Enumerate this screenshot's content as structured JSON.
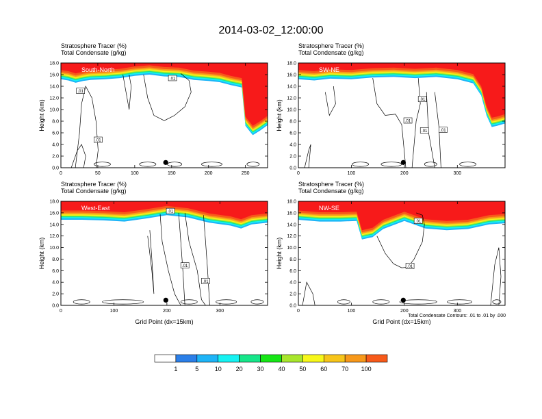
{
  "figure": {
    "title": "2014-03-02_12:00:00",
    "footnote": "Total Condensate Contours: .01 to .01 by .000"
  },
  "colors": {
    "scale": [
      "#ffffff",
      "#2b7fe8",
      "#1eb4f7",
      "#16f2f2",
      "#16e68a",
      "#16e616",
      "#a8e62c",
      "#f7f71a",
      "#f7c51a",
      "#f7981a",
      "#f75a1a",
      "#f71a1a"
    ],
    "contour": "#000000",
    "frame": "#000000"
  },
  "colorbar": {
    "labels": [
      "1",
      "5",
      "10",
      "20",
      "30",
      "40",
      "50",
      "60",
      "70",
      "100"
    ]
  },
  "chart_data": [
    {
      "type": "heatmap",
      "title": "Stratosphere Tracer   (%)",
      "subtitle": "Total Condensate   (g/kg)",
      "region_label": "South-North",
      "xlabel": "",
      "ylabel": "Height (km)",
      "xlim": [
        0,
        280
      ],
      "ylim": [
        0,
        18
      ],
      "xticks": [
        "0",
        "50",
        "100",
        "150",
        "200",
        "250"
      ],
      "yticks": [
        "0.0",
        "2.0",
        "4.0",
        "6.0",
        "8.0",
        "10.0",
        "12.0",
        "14.0",
        "16.0",
        "18.0"
      ],
      "contour_labels": [
        ".01",
        ".01",
        ".01"
      ],
      "marker_x": 142,
      "tracer_base_km": [
        [
          0,
          15.2
        ],
        [
          10,
          15.0
        ],
        [
          20,
          14.6
        ],
        [
          30,
          14.9
        ],
        [
          40,
          15.1
        ],
        [
          60,
          15.2
        ],
        [
          80,
          15.4
        ],
        [
          100,
          15.8
        ],
        [
          120,
          16.0
        ],
        [
          140,
          15.7
        ],
        [
          160,
          15.6
        ],
        [
          180,
          15.1
        ],
        [
          200,
          14.9
        ],
        [
          215,
          14.7
        ],
        [
          230,
          14.2
        ],
        [
          245,
          13.8
        ],
        [
          250,
          7.2
        ],
        [
          255,
          6.4
        ],
        [
          260,
          5.6
        ],
        [
          270,
          6.4
        ],
        [
          280,
          7.3
        ]
      ]
    },
    {
      "type": "heatmap",
      "title": "Stratosphere Tracer   (%)",
      "subtitle": "Total Condensate   (g/kg)",
      "region_label": "SW-NE",
      "xlabel": "",
      "ylabel": "Height (km)",
      "xlim": [
        0,
        390
      ],
      "ylim": [
        0,
        18
      ],
      "xticks": [
        "0",
        "100",
        "200",
        "300"
      ],
      "yticks": [
        "0.0",
        "2.0",
        "4.0",
        "6.0",
        "8.0",
        "10.0",
        "12.0",
        "14.0",
        "16.0",
        "18.0"
      ],
      "contour_labels": [
        ".01",
        ".01",
        ".01",
        ".01"
      ],
      "marker_x": 198,
      "tracer_base_km": [
        [
          0,
          15.2
        ],
        [
          30,
          15.0
        ],
        [
          60,
          15.3
        ],
        [
          100,
          15.2
        ],
        [
          140,
          15.5
        ],
        [
          180,
          15.6
        ],
        [
          220,
          15.4
        ],
        [
          260,
          15.6
        ],
        [
          300,
          15.2
        ],
        [
          330,
          14.5
        ],
        [
          345,
          12.4
        ],
        [
          355,
          9.0
        ],
        [
          365,
          7.0
        ],
        [
          375,
          7.2
        ],
        [
          390,
          7.6
        ]
      ]
    },
    {
      "type": "heatmap",
      "title": "Stratosphere Tracer   (%)",
      "subtitle": "Total Condensate   (g/kg)",
      "region_label": "West-East",
      "xlabel": "Grid Point (dx=15km)",
      "ylabel": "Height (km)",
      "xlim": [
        0,
        390
      ],
      "ylim": [
        0,
        18
      ],
      "xticks": [
        "0",
        "100",
        "200",
        "300"
      ],
      "yticks": [
        "0.0",
        "2.0",
        "4.0",
        "6.0",
        "8.0",
        "10.0",
        "12.0",
        "14.0",
        "16.0",
        "18.0"
      ],
      "contour_labels": [
        ".01",
        ".01",
        ".01"
      ],
      "marker_x": 198,
      "tracer_base_km": [
        [
          0,
          14.8
        ],
        [
          40,
          14.8
        ],
        [
          80,
          14.7
        ],
        [
          120,
          14.5
        ],
        [
          160,
          15.0
        ],
        [
          200,
          15.6
        ],
        [
          240,
          15.2
        ],
        [
          280,
          14.3
        ],
        [
          320,
          13.8
        ],
        [
          340,
          13.3
        ],
        [
          360,
          14.0
        ],
        [
          390,
          14.3
        ]
      ]
    },
    {
      "type": "heatmap",
      "title": "Stratosphere Tracer   (%)",
      "subtitle": "Total Condensate   (g/kg)",
      "region_label": "NW-SE",
      "xlabel": "Grid Point (dx=15km)",
      "ylabel": "",
      "xlim": [
        0,
        390
      ],
      "ylim": [
        0,
        18
      ],
      "xticks": [
        "0",
        "100",
        "200",
        "300"
      ],
      "yticks": [
        "0.0",
        "2.0",
        "4.0",
        "6.0",
        "8.0",
        "10.0",
        "12.0",
        "14.0",
        "16.0",
        "18.0"
      ],
      "contour_labels": [
        ".01",
        ".01"
      ],
      "marker_x": 198,
      "tracer_base_km": [
        [
          0,
          14.8
        ],
        [
          40,
          14.5
        ],
        [
          80,
          14.5
        ],
        [
          110,
          14.6
        ],
        [
          120,
          11.4
        ],
        [
          140,
          11.8
        ],
        [
          160,
          13.2
        ],
        [
          200,
          14.6
        ],
        [
          240,
          13.3
        ],
        [
          280,
          13.0
        ],
        [
          320,
          13.2
        ],
        [
          360,
          14.0
        ],
        [
          390,
          14.2
        ]
      ]
    }
  ]
}
